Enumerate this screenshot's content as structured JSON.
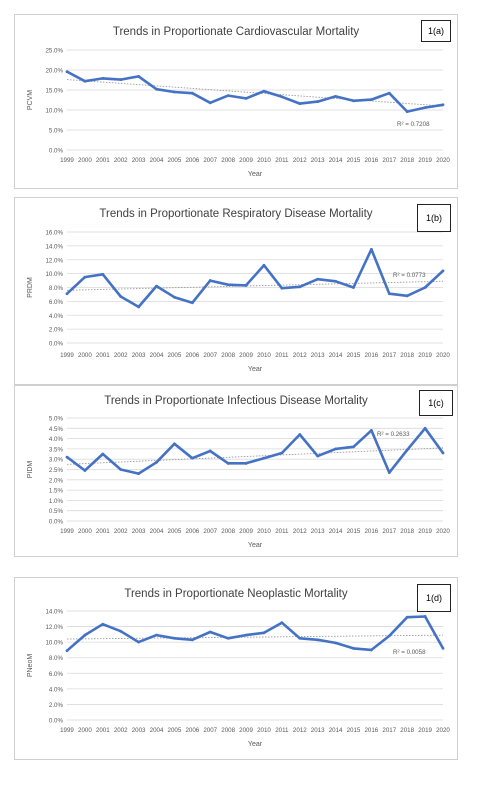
{
  "chart_data": [
    {
      "type": "line",
      "id": "1(a)",
      "title": "Trends in Proportionate Cardiovascular Mortality",
      "xlabel": "Year",
      "ylabel": "PCVM",
      "ylim": [
        0,
        25
      ],
      "yticks": [
        0,
        5,
        10,
        15,
        20,
        25
      ],
      "ytick_labels": [
        "0.0%",
        "5.0%",
        "10.0%",
        "15.0%",
        "20.0%",
        "25.0%"
      ],
      "categories": [
        "1999",
        "2000",
        "2001",
        "2002",
        "2003",
        "2004",
        "2005",
        "2006",
        "2007",
        "2008",
        "2009",
        "2010",
        "2011",
        "2012",
        "2013",
        "2014",
        "2015",
        "2016",
        "2017",
        "2018",
        "2019",
        "2020"
      ],
      "values": [
        19.6,
        17.2,
        17.9,
        17.6,
        18.4,
        15.2,
        14.5,
        14.2,
        11.8,
        13.6,
        12.9,
        14.7,
        13.3,
        11.6,
        12.1,
        13.4,
        12.3,
        12.6,
        14.2,
        9.6,
        10.6,
        11.3
      ],
      "trend": [
        17.6,
        11.0
      ],
      "r2_label": "R² = 0.7208",
      "grid": true
    },
    {
      "type": "line",
      "id": "1(b)",
      "title": "Trends in Proportionate Respiratory Disease Mortality",
      "xlabel": "Year",
      "ylabel": "PRDM",
      "ylim": [
        0,
        16
      ],
      "yticks": [
        0,
        2,
        4,
        6,
        8,
        10,
        12,
        14,
        16
      ],
      "ytick_labels": [
        "0.0%",
        "2.0%",
        "4.0%",
        "6.0%",
        "8.0%",
        "10.0%",
        "12.0%",
        "14.0%",
        "16.0%"
      ],
      "categories": [
        "1999",
        "2000",
        "2001",
        "2002",
        "2003",
        "2004",
        "2005",
        "2006",
        "2007",
        "2008",
        "2009",
        "2010",
        "2011",
        "2012",
        "2013",
        "2014",
        "2015",
        "2016",
        "2017",
        "2018",
        "2019",
        "2020"
      ],
      "values": [
        7.1,
        9.5,
        9.9,
        6.7,
        5.2,
        8.2,
        6.6,
        5.8,
        9.0,
        8.4,
        8.3,
        11.2,
        7.9,
        8.1,
        9.2,
        8.9,
        8.0,
        13.5,
        7.1,
        6.8,
        8.0,
        10.4
      ],
      "trend": [
        7.6,
        8.9
      ],
      "r2_label": "R² = 0.0773",
      "grid": true
    },
    {
      "type": "line",
      "id": "1(c)",
      "title": "Trends in Proportionate Infectious Disease Mortality",
      "xlabel": "Year",
      "ylabel": "PIDM",
      "ylim": [
        0,
        5
      ],
      "yticks": [
        0,
        0.5,
        1,
        1.5,
        2,
        2.5,
        3,
        3.5,
        4,
        4.5,
        5
      ],
      "ytick_labels": [
        "0.0%",
        "0.5%",
        "1.0%",
        "1.5%",
        "2.0%",
        "2.5%",
        "3.0%",
        "3.5%",
        "4.0%",
        "4.5%",
        "5.0%"
      ],
      "categories": [
        "1999",
        "2000",
        "2001",
        "2002",
        "2003",
        "2004",
        "2005",
        "2006",
        "2007",
        "2008",
        "2009",
        "2010",
        "2011",
        "2012",
        "2013",
        "2014",
        "2015",
        "2016",
        "2017",
        "2018",
        "2019",
        "2020"
      ],
      "values": [
        3.1,
        2.45,
        3.25,
        2.5,
        2.3,
        2.85,
        3.75,
        3.05,
        3.4,
        2.8,
        2.8,
        3.05,
        3.3,
        4.2,
        3.15,
        3.5,
        3.6,
        4.4,
        2.35,
        3.45,
        4.5,
        3.3
      ],
      "trend": [
        2.75,
        3.55
      ],
      "r2_label": "R² = 0.2633",
      "grid": true
    },
    {
      "type": "line",
      "id": "1(d)",
      "title": "Trends in Proportionate Neoplastic Mortality",
      "xlabel": "Year",
      "ylabel": "PNeoM",
      "ylim": [
        0,
        14
      ],
      "yticks": [
        0,
        2,
        4,
        6,
        8,
        10,
        12,
        14
      ],
      "ytick_labels": [
        "0.0%",
        "2.0%",
        "4.0%",
        "6.0%",
        "8.0%",
        "10.0%",
        "12.0%",
        "14.0%"
      ],
      "categories": [
        "1999",
        "2000",
        "2001",
        "2002",
        "2003",
        "2004",
        "2005",
        "2006",
        "2007",
        "2008",
        "2009",
        "2010",
        "2011",
        "2012",
        "2013",
        "2014",
        "2015",
        "2016",
        "2017",
        "2018",
        "2019",
        "2020"
      ],
      "values": [
        8.9,
        10.9,
        12.3,
        11.4,
        10.0,
        10.9,
        10.5,
        10.3,
        11.3,
        10.5,
        10.9,
        11.2,
        12.5,
        10.5,
        10.3,
        9.9,
        9.2,
        9.0,
        10.8,
        13.2,
        13.3,
        9.2
      ],
      "trend": [
        10.4,
        10.9
      ],
      "r2_label": "R² = 0.0058",
      "grid": true
    }
  ],
  "colors": {
    "series": "#4472c4",
    "trend": "#9a9a9a",
    "grid": "#d9d9d9",
    "axis_text": "#595959",
    "title": "#404040"
  }
}
